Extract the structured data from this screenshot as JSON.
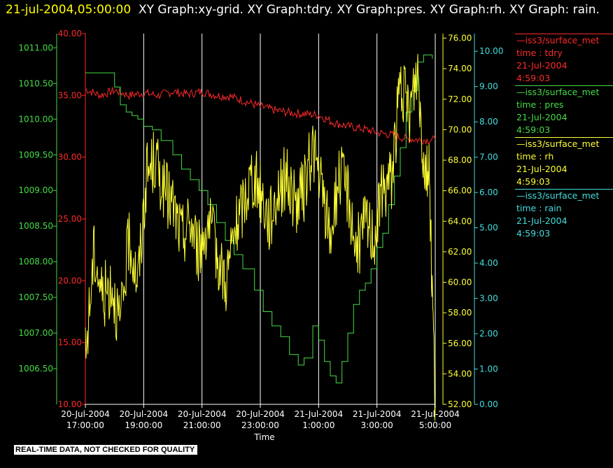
{
  "header": {
    "timestamp": "21-jul-2004,05:00:00",
    "title": "XY Graph:xy-grid.  XY Graph:tdry.  XY Graph:pres.  XY Graph:rh.  XY Graph: rain."
  },
  "disclaimer": "REAL-TIME DATA, NOT CHECKED FOR QUALITY",
  "legend": [
    {
      "source": "—iss3/surface_met",
      "field": "time : tdry",
      "date": "21-Jul-2004",
      "time": "4:59:03",
      "color": "#ff2a2a"
    },
    {
      "source": "—iss3/surface_met",
      "field": "time : pres",
      "date": "21-Jul-2004",
      "time": "4:59:03",
      "color": "#44dd44"
    },
    {
      "source": "—iss3/surface_met",
      "field": "time : rh",
      "date": "21-Jul-2004",
      "time": "4:59:03",
      "color": "#ffff33"
    },
    {
      "source": "—iss3/surface_met",
      "field": "time : rain",
      "date": "21-Jul-2004",
      "time": "4:59:03",
      "color": "#44dddd"
    }
  ],
  "chart_data": {
    "type": "line",
    "xlabel": "Time",
    "xlim": [
      17,
      29
    ],
    "x_ticks": [
      {
        "v": 17,
        "date": "20-Jul-2004",
        "time": "17:00:00"
      },
      {
        "v": 19,
        "date": "20-Jul-2004",
        "time": "19:00:00"
      },
      {
        "v": 21,
        "date": "20-Jul-2004",
        "time": "21:00:00"
      },
      {
        "v": 23,
        "date": "20-Jul-2004",
        "time": "23:00:00"
      },
      {
        "v": 25,
        "date": "21-Jul-2004",
        "time": "1:00:00"
      },
      {
        "v": 27,
        "date": "21-Jul-2004",
        "time": "3:00:00"
      },
      {
        "v": 29,
        "date": "21-Jul-2004",
        "time": "5:00:00"
      }
    ],
    "grid": "vertical",
    "axes": [
      {
        "id": "pres",
        "side": "left",
        "color": "#44dd44",
        "ylim": [
          1006.0,
          1011.2
        ],
        "ticks": [
          "1006.50",
          "1007.00",
          "1007.50",
          "1008.00",
          "1008.50",
          "1009.00",
          "1009.50",
          "1010.00",
          "1010.50",
          "1011.00"
        ]
      },
      {
        "id": "tdry",
        "side": "left",
        "color": "#ff2a2a",
        "ylim": [
          10,
          40
        ],
        "ticks": [
          "10.00",
          "15.00",
          "20.00",
          "25.00",
          "30.00",
          "35.00",
          "40.00"
        ]
      },
      {
        "id": "rh",
        "side": "right",
        "color": "#ffff33",
        "ylim": [
          52,
          76.3
        ],
        "ticks": [
          "52.00",
          "54.00",
          "56.00",
          "58.00",
          "60.00",
          "62.00",
          "64.00",
          "66.00",
          "68.00",
          "70.00",
          "72.00",
          "74.00",
          "76.00"
        ]
      },
      {
        "id": "rain",
        "side": "right",
        "color": "#44dddd",
        "ylim": [
          0,
          10.5
        ],
        "ticks": [
          "0.00",
          "1.00",
          "2.00",
          "3.00",
          "4.00",
          "5.00",
          "6.00",
          "7.00",
          "8.00",
          "9.00",
          "10.00"
        ]
      }
    ],
    "series": [
      {
        "axis": "tdry",
        "color": "#ff2a2a",
        "style": "noisy",
        "x": [
          17,
          17.5,
          18,
          18.5,
          19,
          19.5,
          20,
          20.5,
          21,
          21.5,
          22,
          22.5,
          23,
          23.5,
          24,
          24.5,
          25,
          25.5,
          26,
          26.5,
          27,
          27.5,
          28,
          28.5,
          29
        ],
        "y": [
          35.5,
          35.0,
          35.4,
          35.0,
          35.2,
          35.0,
          35.3,
          35.1,
          35.3,
          35.0,
          34.9,
          34.5,
          34.1,
          33.8,
          33.6,
          33.5,
          33.4,
          32.8,
          32.5,
          32.3,
          32.0,
          31.8,
          31.5,
          31.4,
          31.4
        ]
      },
      {
        "axis": "pres",
        "color": "#44dd44",
        "style": "step",
        "x": [
          17,
          17.5,
          18.0,
          18.2,
          18.4,
          18.6,
          18.8,
          19.0,
          19.3,
          19.6,
          20.0,
          20.3,
          20.6,
          20.9,
          21.2,
          21.5,
          21.8,
          22.1,
          22.4,
          22.8,
          23.1,
          23.4,
          23.7,
          24.0,
          24.3,
          24.5,
          24.8,
          25.0,
          25.2,
          25.4,
          25.6,
          25.8,
          26.0,
          26.2,
          26.4,
          26.6,
          26.8,
          27.0,
          27.2,
          27.4,
          27.6,
          27.8,
          28.0,
          28.2,
          28.4,
          28.6,
          28.9
        ],
        "y": [
          1010.65,
          1010.65,
          1010.45,
          1010.2,
          1010.1,
          1010.05,
          1010.0,
          1009.9,
          1009.85,
          1009.7,
          1009.5,
          1009.3,
          1009.15,
          1009.0,
          1008.8,
          1008.55,
          1008.3,
          1008.1,
          1007.9,
          1007.6,
          1007.3,
          1007.1,
          1006.95,
          1006.7,
          1006.55,
          1006.65,
          1007.1,
          1006.9,
          1006.6,
          1006.4,
          1006.3,
          1006.6,
          1007.0,
          1007.4,
          1007.6,
          1007.7,
          1007.9,
          1008.2,
          1008.4,
          1008.8,
          1009.2,
          1009.6,
          1010.1,
          1010.4,
          1010.8,
          1010.9,
          1010.85
        ]
      },
      {
        "axis": "rh",
        "color": "#ffff33",
        "style": "noisy",
        "x": [
          17,
          17.3,
          17.6,
          17.9,
          18.2,
          18.5,
          18.8,
          19.1,
          19.4,
          19.7,
          20.0,
          20.3,
          20.6,
          20.9,
          21.2,
          21.5,
          21.8,
          22.1,
          22.4,
          22.7,
          23.0,
          23.3,
          23.6,
          23.9,
          24.2,
          24.5,
          24.8,
          25.1,
          25.4,
          25.7,
          26.0,
          26.3,
          26.6,
          26.9,
          27.2,
          27.5,
          27.8,
          28.1,
          28.4,
          28.6,
          28.8,
          29.0
        ],
        "y": [
          55,
          62,
          59,
          60,
          57,
          63,
          60,
          67,
          68,
          66,
          65,
          63,
          64,
          62,
          64,
          62,
          60,
          63,
          65,
          67,
          66,
          64,
          66,
          67,
          65,
          66,
          69,
          66,
          63,
          67,
          66,
          62,
          64,
          63,
          66,
          67,
          73,
          71,
          74,
          68,
          67,
          52
        ]
      },
      {
        "axis": "rain",
        "color": "#44dddd",
        "style": "flat",
        "x": [
          17,
          29
        ],
        "y": [
          0.0,
          0.0
        ]
      }
    ]
  }
}
